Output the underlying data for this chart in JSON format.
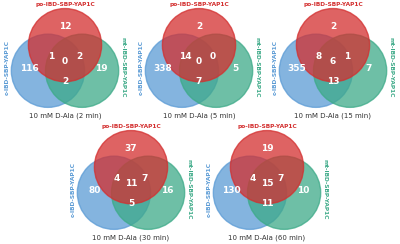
{
  "diagrams": [
    {
      "title": "10 mM D-Ala (2 min)",
      "values": {
        "red_only": 12,
        "blue_only": 116,
        "green_only": 19,
        "red_blue": 1,
        "red_green": 2,
        "blue_green": 2,
        "all": 0
      }
    },
    {
      "title": "10 mM D-Ala (5 min)",
      "values": {
        "red_only": 2,
        "blue_only": 338,
        "green_only": 5,
        "red_blue": 14,
        "red_green": 0,
        "blue_green": 7,
        "all": 0
      }
    },
    {
      "title": "10 mM D-Ala (15 min)",
      "values": {
        "red_only": 2,
        "blue_only": 355,
        "green_only": 7,
        "red_blue": 8,
        "red_green": 1,
        "blue_green": 13,
        "all": 6
      }
    },
    {
      "title": "10 mM D-Ala (30 min)",
      "values": {
        "red_only": 37,
        "blue_only": 80,
        "green_only": 16,
        "red_blue": 4,
        "red_green": 7,
        "blue_green": 5,
        "all": 11
      }
    },
    {
      "title": "10 mM D-Ala (60 min)",
      "values": {
        "red_only": 19,
        "blue_only": 130,
        "green_only": 10,
        "red_blue": 4,
        "red_green": 7,
        "blue_green": 11,
        "all": 15
      }
    }
  ],
  "label_red": "po-IBD-SBP-YAP1C",
  "label_blue": "c-IBD-SBP-YAP1C",
  "label_green": "mt-IBD-SBP-YAP1C",
  "color_red": "#d32f2f",
  "color_blue": "#5b9bd5",
  "color_green": "#3daa88",
  "bg_color": "#ffffff"
}
